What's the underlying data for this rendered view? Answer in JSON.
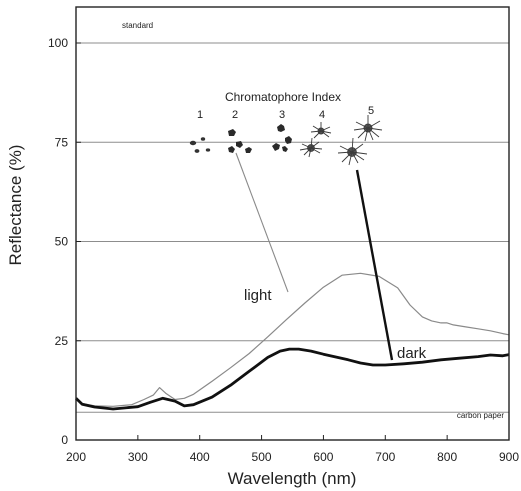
{
  "chart_data": {
    "type": "line",
    "title": "",
    "xlabel": "Wavelength (nm)",
    "ylabel": "Reflectance (%)",
    "xlim": [
      200,
      900
    ],
    "ylim": [
      0,
      100
    ],
    "xticks": [
      200,
      300,
      400,
      500,
      600,
      700,
      800,
      900
    ],
    "yticks": [
      0,
      25,
      50,
      75,
      100
    ],
    "grid": "horizontal",
    "reference_lines": [
      {
        "y": 100,
        "label": "standard"
      },
      {
        "y": 75,
        "label": ""
      },
      {
        "y": 50,
        "label": ""
      },
      {
        "y": 25,
        "label": ""
      },
      {
        "y": 7,
        "label": "carbon paper"
      }
    ],
    "series": [
      {
        "name": "light",
        "color": "#8a8a8a",
        "x": [
          200,
          210,
          230,
          260,
          290,
          310,
          325,
          335,
          345,
          360,
          375,
          390,
          420,
          450,
          480,
          510,
          540,
          570,
          600,
          630,
          660,
          690,
          720,
          740,
          760,
          775,
          790,
          800,
          810,
          830,
          850,
          870,
          890,
          900
        ],
        "y": [
          10.5,
          9.2,
          8.6,
          8.5,
          8.9,
          10.2,
          11.3,
          13.2,
          11.8,
          10.2,
          10.5,
          11.5,
          14.8,
          18.2,
          21.8,
          26.0,
          30.3,
          34.5,
          38.5,
          41.5,
          42.0,
          41.2,
          38.3,
          34.0,
          31.0,
          30.0,
          29.5,
          29.5,
          29.0,
          28.5,
          28.0,
          27.5,
          26.8,
          26.5
        ]
      },
      {
        "name": "dark",
        "color": "#111111",
        "x": [
          200,
          210,
          230,
          260,
          300,
          320,
          340,
          360,
          375,
          390,
          420,
          450,
          480,
          510,
          530,
          545,
          560,
          580,
          600,
          620,
          640,
          660,
          680,
          700,
          730,
          760,
          790,
          820,
          850,
          870,
          890,
          900
        ],
        "y": [
          10.5,
          9.0,
          8.3,
          7.8,
          8.4,
          9.5,
          10.5,
          9.8,
          8.6,
          8.9,
          10.8,
          13.8,
          17.3,
          20.8,
          22.4,
          22.9,
          22.9,
          22.4,
          21.6,
          20.9,
          20.2,
          19.4,
          18.9,
          18.9,
          19.2,
          19.6,
          20.2,
          20.6,
          21.0,
          21.4,
          21.2,
          21.5
        ]
      }
    ],
    "inset": {
      "title": "Chromatophore Index",
      "labels": [
        "1",
        "2",
        "3",
        "4",
        "5"
      ]
    }
  },
  "icons": [
    "chromatophore-1-icon",
    "chromatophore-2-icon",
    "chromatophore-3-icon",
    "chromatophore-4-icon",
    "chromatophore-5-icon"
  ]
}
